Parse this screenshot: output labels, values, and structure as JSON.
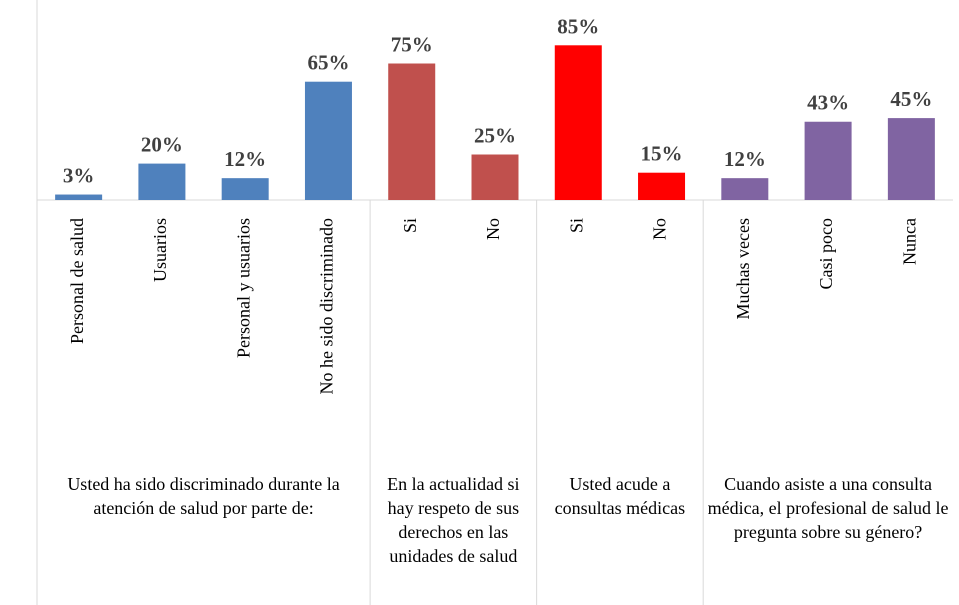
{
  "chart_data": {
    "type": "bar",
    "groups": [
      {
        "label": "Usted ha sido discriminado durante la atención de salud por parte de:",
        "color": "#4f81bd",
        "categories": [
          "Personal de salud",
          "Usuarios",
          "Personal y usuarios",
          "No he sido discriminado"
        ],
        "values": [
          3,
          20,
          12,
          65
        ],
        "value_labels": [
          "3%",
          "20%",
          "12%",
          "65%"
        ]
      },
      {
        "label": "En la actualidad si hay respeto de sus derechos en las unidades de salud",
        "color": "#c0504d",
        "categories": [
          "Si",
          "No"
        ],
        "values": [
          75,
          25
        ],
        "value_labels": [
          "75%",
          "25%"
        ]
      },
      {
        "label": "Usted acude a consultas médicas",
        "color": "#ff0000",
        "categories": [
          "Si",
          "No"
        ],
        "values": [
          85,
          15
        ],
        "value_labels": [
          "85%",
          "15%"
        ]
      },
      {
        "label": "Cuando asiste a una consulta médica, el profesional de salud le pregunta sobre su género?",
        "color": "#8064a2",
        "categories": [
          "Muchas veces",
          "Casi poco",
          "Nunca"
        ],
        "values": [
          12,
          43,
          45
        ],
        "value_labels": [
          "12%",
          "43%",
          "45%"
        ]
      }
    ]
  }
}
